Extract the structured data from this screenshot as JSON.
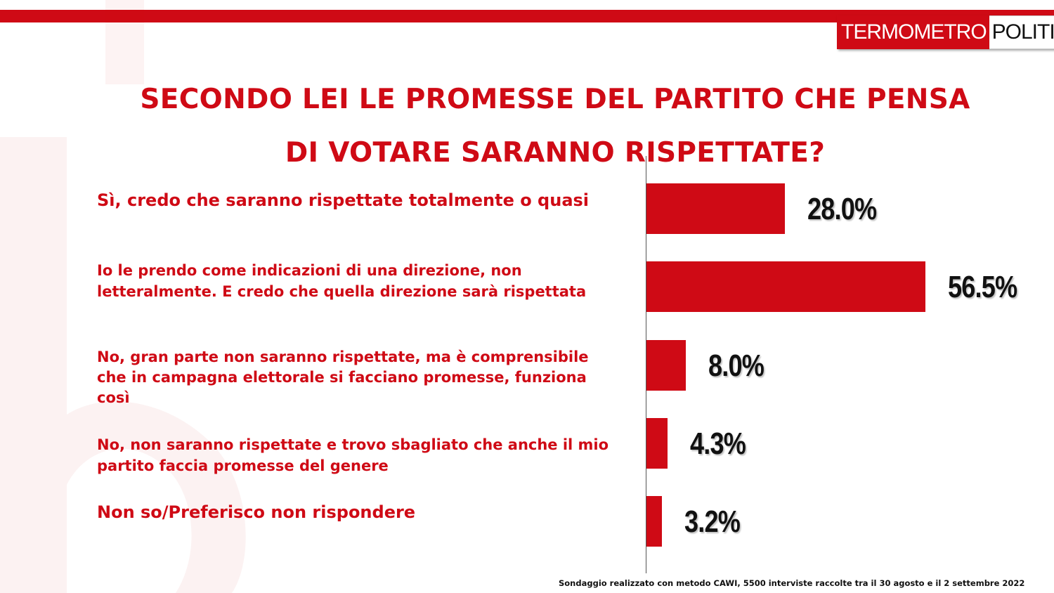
{
  "brand": {
    "part1": "TERMOMETRO",
    "part2": "POLITICO",
    "accent": "#cf0a15"
  },
  "chart_data": {
    "type": "bar",
    "orientation": "horizontal",
    "title": "SECONDO LEI LE PROMESSE DEL PARTITO CHE PENSA DI VOTARE SARANNO RISPETTATE?",
    "title_lines": [
      "SECONDO LEI LE PROMESSE DEL PARTITO CHE PENSA",
      "DI VOTARE SARANNO RISPETTATE?"
    ],
    "unit": "%",
    "categories": [
      "Sì, credo che saranno rispettate totalmente o quasi",
      "Io le prendo come indicazioni di una direzione, non letteralmente. E credo che quella direzione sarà rispettata",
      "No, gran parte non saranno rispettate, ma è comprensibile che in campagna elettorale si facciano promesse, funziona così",
      "No, non saranno rispettate e trovo sbagliato che anche il mio partito faccia promesse del genere",
      "Non so/Preferisco non rispondere"
    ],
    "values": [
      28.0,
      56.5,
      8.0,
      4.3,
      3.2
    ],
    "value_labels": [
      "28.0%",
      "56.5%",
      "8.0%",
      "4.3%",
      "3.2%"
    ],
    "xlim": [
      0,
      56.5
    ],
    "bar_color": "#cf0a15",
    "grid": false,
    "legend": "none"
  },
  "footnote": "Sondaggio realizzato con metodo CAWI, 5500 interviste raccolte tra il 30 agosto  e il 2 settembre 2022"
}
